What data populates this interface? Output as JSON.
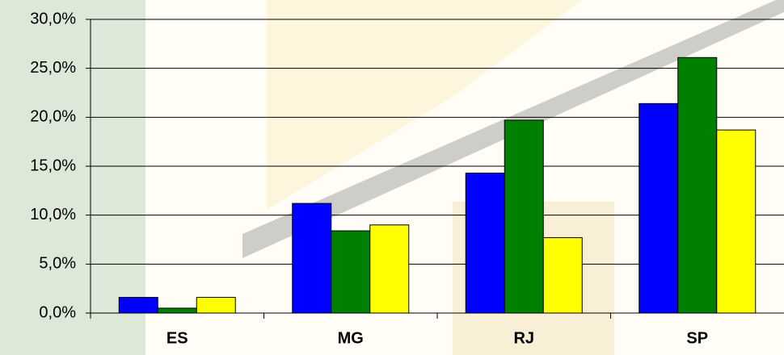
{
  "chart_data": {
    "type": "bar",
    "categories": [
      "ES",
      "MG",
      "RJ",
      "SP"
    ],
    "series": [
      {
        "color": "#0000ff",
        "values": [
          1.6,
          11.2,
          14.3,
          21.4
        ]
      },
      {
        "color": "#008000",
        "values": [
          0.5,
          8.4,
          19.7,
          26.1
        ]
      },
      {
        "color": "#ffff00",
        "values": [
          1.6,
          9.0,
          7.7,
          18.7
        ]
      }
    ],
    "ylim": [
      0,
      30
    ],
    "yticks": [
      {
        "value": 0,
        "label": "0,0%"
      },
      {
        "value": 5,
        "label": "5,0%"
      },
      {
        "value": 10,
        "label": "10,0%"
      },
      {
        "value": 15,
        "label": "15,0%"
      },
      {
        "value": 20,
        "label": "20,0%"
      },
      {
        "value": 25,
        "label": "25,0%"
      },
      {
        "value": 30,
        "label": "30,0%"
      }
    ],
    "grid": true
  }
}
